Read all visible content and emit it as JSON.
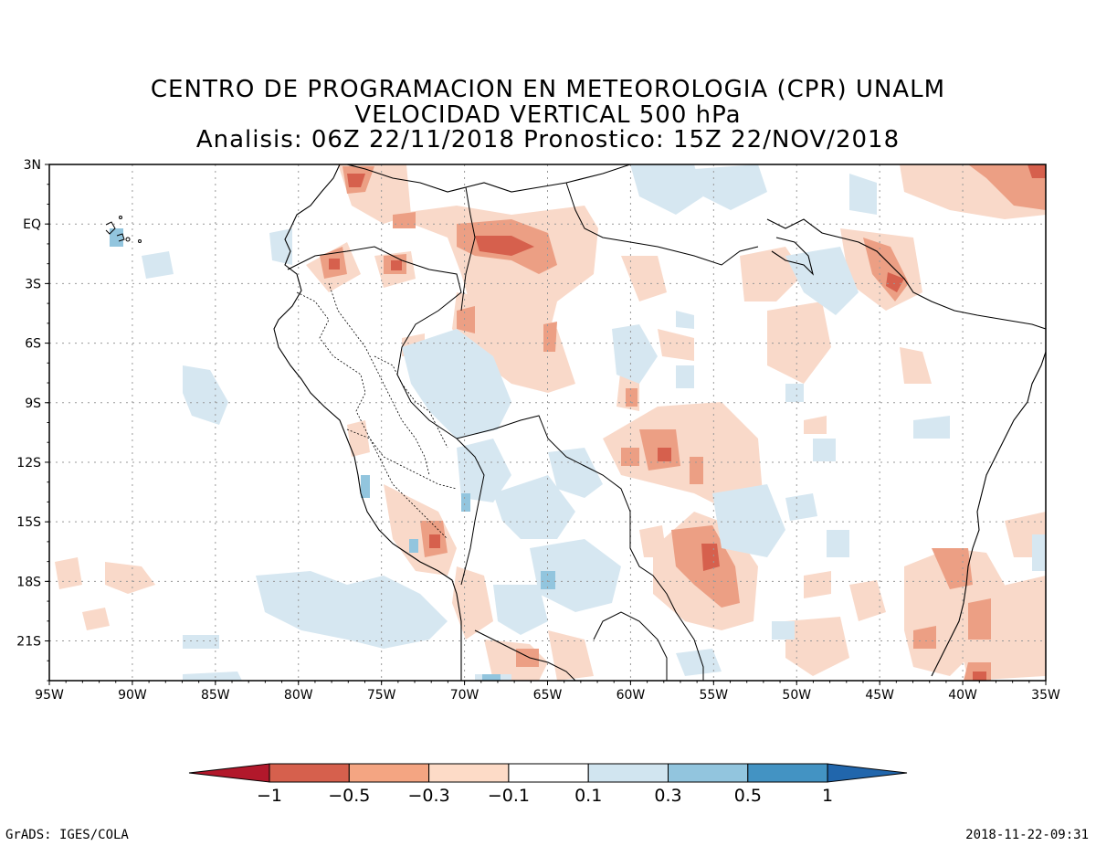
{
  "titles": {
    "line1": "CENTRO DE PROGRAMACION EN METEOROLOGIA (CPR) UNALM",
    "line2": "VELOCIDAD VERTICAL 500 hPa",
    "line3": "Analisis: 06Z 22/11/2018 Pronostico: 15Z 22/NOV/2018"
  },
  "axes": {
    "lat_labels": [
      "3N",
      "EQ",
      "3S",
      "6S",
      "9S",
      "12S",
      "15S",
      "18S",
      "21S"
    ],
    "lon_labels": [
      "95W",
      "90W",
      "85W",
      "80W",
      "75W",
      "70W",
      "65W",
      "60W",
      "55W",
      "50W",
      "45W",
      "40W",
      "35W"
    ]
  },
  "colorbar": {
    "labels": [
      "−1",
      "−0.5",
      "−0.3",
      "−0.1",
      "0.1",
      "0.3",
      "0.5",
      "1"
    ],
    "colors": [
      "#b2182b",
      "#d6604d",
      "#f4a582",
      "#fddbc7",
      "#ffffff",
      "#d1e5f0",
      "#92c5de",
      "#4393c3",
      "#2166ac"
    ]
  },
  "footer": {
    "left": "GrADS: IGES/COLA",
    "right": "2018-11-22-09:31"
  },
  "map": {
    "lon_range": [
      -95,
      -35
    ],
    "lat_range": [
      -23,
      3
    ],
    "grid_spacing": 3,
    "shading_colors": {
      "weak_neg": "#f9d9c9",
      "mod_neg": "#ec9f84",
      "strong_neg": "#d6604d",
      "vstrong_neg": "#b2182b",
      "weak_pos": "#d6e7f1",
      "mod_pos": "#92c5de",
      "strong_pos": "#4393c3"
    }
  }
}
